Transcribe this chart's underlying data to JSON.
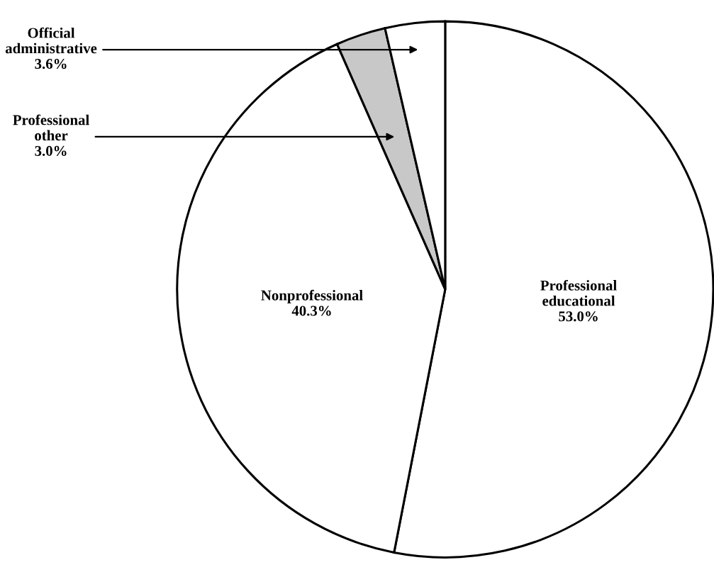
{
  "chart_data": {
    "type": "pie",
    "categories": [
      "Professional educational",
      "Nonprofessional",
      "Professional other",
      "Official administrative"
    ],
    "values": [
      53.0,
      40.3,
      3.0,
      3.6
    ],
    "value_labels": [
      "53.0%",
      "40.3%",
      "3.0%",
      "3.6%"
    ],
    "colors": [
      "#ffffff",
      "#ffffff",
      "#c8c8c8",
      "#ffffff"
    ],
    "legend": false
  }
}
